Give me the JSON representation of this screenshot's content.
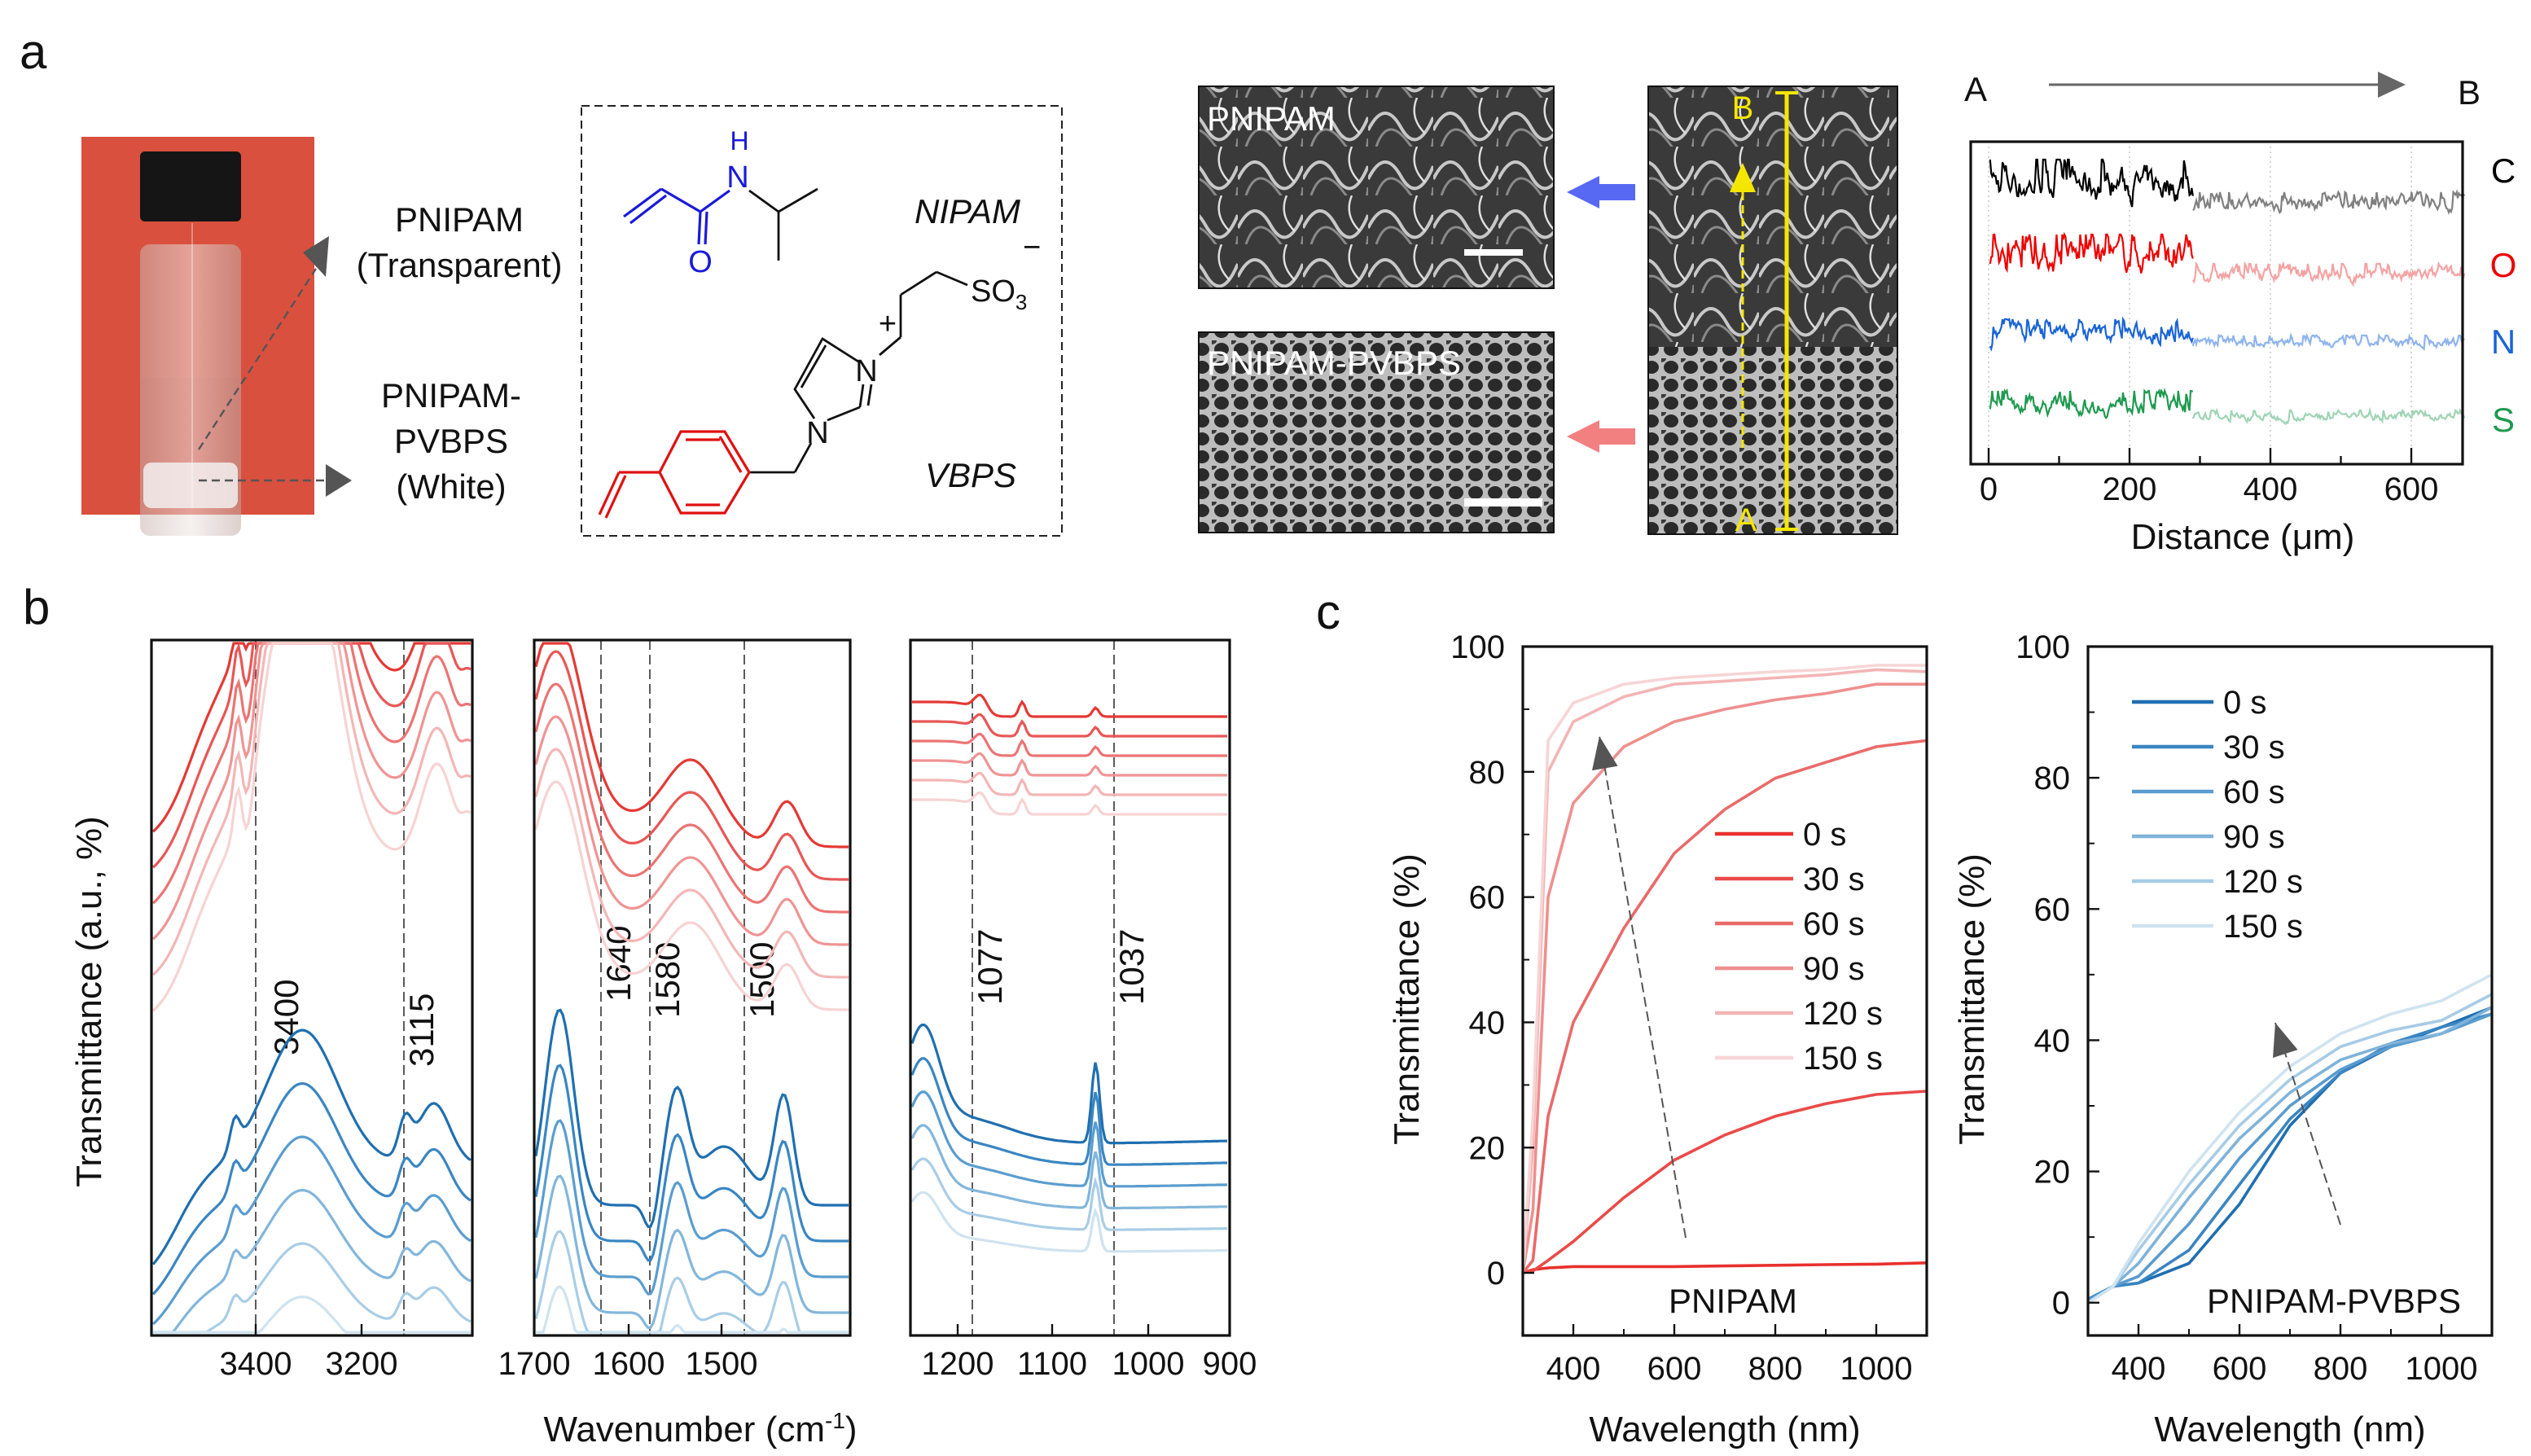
{
  "panels": {
    "a": {
      "letter": "a",
      "vial_labels": {
        "pnipam": "PNIPAM",
        "pnipam_note": "(Transparent)",
        "pvbps_1": "PNIPAM-",
        "pvbps_2": "PVBPS",
        "pvbps_note": "(White)"
      },
      "chemistry": {
        "nipam_name": "NIPAM",
        "vbps_name": "VBPS",
        "atom_h": "H",
        "atom_n": "N",
        "atom_o": "O",
        "so3": "SO",
        "so3_sub": "3",
        "minus": "−",
        "plus": "+"
      },
      "sem": {
        "top_label": "PNIPAM",
        "bottom_label": "PNIPAM-PVBPS",
        "point_b": "B",
        "point_a": "A"
      },
      "colors": {
        "photo_bg": "#d9503e",
        "nipam": "#1a1adb",
        "vbps": "#e01010",
        "line_scan": "#f5e600",
        "arrow_blue": "#3a4ef0",
        "arrow_red": "#f06a6a"
      }
    },
    "b": {
      "letter": "b"
    },
    "c": {
      "letter": "c"
    }
  },
  "chart_data": [
    {
      "id": "eds-line-scan",
      "type": "line",
      "xlabel": "Distance (μm)",
      "xlim": [
        0,
        676
      ],
      "xticks": [
        "0",
        "200",
        "400",
        "600"
      ],
      "direction_start": "A",
      "direction_end": "B",
      "grid": "vertical-dotted",
      "series": [
        {
          "name": "C",
          "color": "#000000",
          "color_light": "#808080"
        },
        {
          "name": "O",
          "color": "#ee0000",
          "color_light": "#f4a3a3"
        },
        {
          "name": "N",
          "color": "#1a64d6",
          "color_light": "#8fb4ec"
        },
        {
          "name": "S",
          "color": "#1f9a50",
          "color_light": "#9fd4b4"
        }
      ],
      "interface_um": 290
    },
    {
      "id": "ftir",
      "type": "line",
      "ylabel": "Transmittance (a.u., %)",
      "xlabel_main": "Wavenumber (cm",
      "xlabel_sup": "-1",
      "xlabel_end": ")",
      "subplots": [
        {
          "xlim": [
            3600,
            3000
          ],
          "xticks": [
            "3400",
            "3200"
          ],
          "markers": [
            "3400",
            "3115"
          ]
        },
        {
          "xlim": [
            1700,
            1360
          ],
          "xticks": [
            "1700",
            "1600",
            "1500"
          ],
          "markers": [
            "1640",
            "1580",
            "1500"
          ]
        },
        {
          "xlim": [
            1250,
            900
          ],
          "xticks": [
            "1200",
            "1100",
            "1000",
            "900"
          ],
          "markers": [
            "1077",
            "1037"
          ]
        }
      ],
      "series_groups": {
        "red": [
          "#e53935",
          "#e95656",
          "#ec7474",
          "#f09494",
          "#f4b6b6",
          "#f7d3d3"
        ],
        "blue": [
          "#1f6fb0",
          "#3a86c2",
          "#5a9dcf",
          "#83b6db",
          "#a9cde6",
          "#cfe3f0"
        ]
      }
    },
    {
      "id": "uv-pnipam",
      "type": "line",
      "annotation": "PNIPAM",
      "xlabel": "Wavelength (nm)",
      "ylabel": "Transmittance (%)",
      "xlim": [
        300,
        1100
      ],
      "ylim": [
        -10,
        100
      ],
      "xticks": [
        "400",
        "600",
        "800",
        "1000"
      ],
      "yticks": [
        "0",
        "20",
        "40",
        "60",
        "80",
        "100"
      ],
      "legend": "center-right",
      "x": [
        300,
        320,
        350,
        400,
        500,
        600,
        700,
        800,
        900,
        1000,
        1100
      ],
      "series": [
        {
          "name": "0 s",
          "color": "#e8302e",
          "values": [
            0,
            0.5,
            0.8,
            1,
            1,
            1,
            1.1,
            1.2,
            1.3,
            1.4,
            1.6
          ]
        },
        {
          "name": "30 s",
          "color": "#ea4a48",
          "values": [
            0,
            0.3,
            2,
            5,
            12,
            18,
            22,
            25,
            27,
            28.5,
            29
          ]
        },
        {
          "name": "60 s",
          "color": "#ea6a6a",
          "values": [
            0,
            2,
            25,
            40,
            55,
            67,
            74,
            79,
            81.5,
            84,
            85
          ]
        },
        {
          "name": "90 s",
          "color": "#ef8f8f",
          "values": [
            0,
            10,
            60,
            75,
            84,
            88,
            90,
            91.5,
            92.5,
            94,
            94
          ]
        },
        {
          "name": "120 s",
          "color": "#f3b5b5",
          "values": [
            0,
            20,
            80,
            88,
            92,
            94,
            94.5,
            95,
            95.5,
            96.3,
            96
          ]
        },
        {
          "name": "150 s",
          "color": "#f7d5d5",
          "values": [
            0,
            25,
            85,
            91,
            94,
            95,
            95.5,
            96,
            96.3,
            97,
            97
          ]
        }
      ]
    },
    {
      "id": "uv-pnipam-pvbps",
      "type": "line",
      "annotation": "PNIPAM-PVBPS",
      "xlabel": "Wavelength (nm)",
      "ylabel": "Transmittance (%)",
      "xlim": [
        300,
        1100
      ],
      "ylim": [
        -5,
        100
      ],
      "xticks": [
        "400",
        "600",
        "800",
        "1000"
      ],
      "yticks": [
        "0",
        "20",
        "40",
        "60",
        "80",
        "100"
      ],
      "legend": "top-left",
      "x": [
        300,
        350,
        400,
        500,
        600,
        700,
        800,
        900,
        1000,
        1100
      ],
      "series": [
        {
          "name": "0 s",
          "color": "#1f6fb0",
          "values": [
            0.5,
            2.5,
            3,
            6,
            15,
            27,
            35,
            39,
            42,
            45
          ]
        },
        {
          "name": "30 s",
          "color": "#3a85c2",
          "values": [
            0.5,
            2.5,
            3,
            8,
            18,
            28,
            35,
            39.5,
            42,
            44
          ]
        },
        {
          "name": "60 s",
          "color": "#5a9ccf",
          "values": [
            0.3,
            2.5,
            4,
            12,
            22,
            30,
            35.5,
            39,
            41,
            44
          ]
        },
        {
          "name": "90 s",
          "color": "#7fb3da",
          "values": [
            0,
            2.5,
            6,
            16,
            25,
            32,
            37,
            39.5,
            41,
            45
          ]
        },
        {
          "name": "120 s",
          "color": "#a6cbe6",
          "values": [
            0,
            2.5,
            8,
            18,
            27,
            34,
            39,
            41.5,
            43,
            47
          ]
        },
        {
          "name": "150 s",
          "color": "#cfe3f0",
          "values": [
            0,
            2.5,
            9,
            20,
            29,
            36,
            41,
            44,
            46,
            50
          ]
        }
      ]
    }
  ]
}
